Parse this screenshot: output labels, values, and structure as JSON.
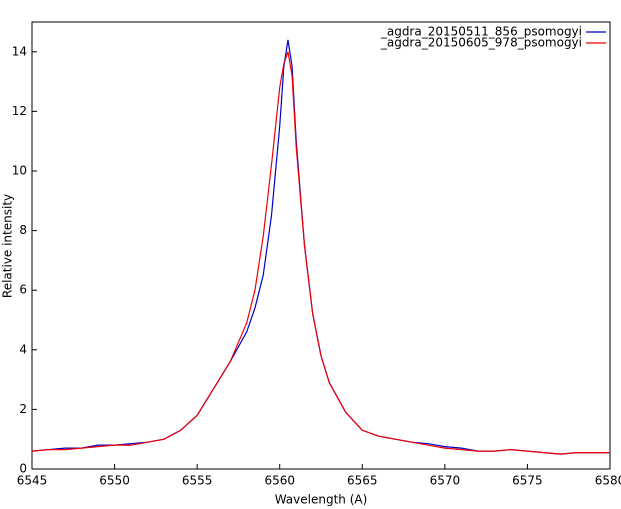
{
  "chart_data": {
    "type": "line",
    "x_label": "Wavelength (A)",
    "y_label": "Relative intensity",
    "x": [
      6545,
      6546,
      6547,
      6548,
      6549,
      6550,
      6551,
      6552,
      6553,
      6554,
      6555,
      6556,
      6557,
      6558,
      6558.5,
      6559,
      6559.5,
      6560,
      6560.25,
      6560.5,
      6560.75,
      6561,
      6561.5,
      6562,
      6562.5,
      6563,
      6564,
      6565,
      6566,
      6567,
      6568,
      6569,
      6570,
      6571,
      6572,
      6573,
      6574,
      6575,
      6576,
      6577,
      6578,
      6579,
      6580
    ],
    "series": [
      {
        "name": "_agdra_20150511_856_psomogyi",
        "color": "#0000cc",
        "values": [
          0.6,
          0.65,
          0.7,
          0.7,
          0.8,
          0.8,
          0.85,
          0.9,
          1.0,
          1.3,
          1.8,
          2.7,
          3.6,
          4.6,
          5.4,
          6.5,
          8.5,
          11.5,
          13.5,
          14.4,
          13.5,
          11.0,
          7.5,
          5.2,
          3.8,
          2.9,
          1.9,
          1.3,
          1.1,
          1.0,
          0.9,
          0.85,
          0.75,
          0.7,
          0.6,
          0.6,
          0.65,
          0.6,
          0.55,
          0.5,
          0.55,
          0.55,
          0.55
        ]
      },
      {
        "name": "_agdra_20150605_978_psomogyi",
        "color": "#ee0000",
        "values": [
          0.6,
          0.65,
          0.65,
          0.7,
          0.75,
          0.8,
          0.8,
          0.9,
          1.0,
          1.3,
          1.8,
          2.7,
          3.6,
          4.9,
          6.0,
          7.8,
          10.2,
          12.8,
          13.6,
          14.0,
          13.2,
          10.8,
          7.5,
          5.2,
          3.8,
          2.9,
          1.9,
          1.3,
          1.1,
          1.0,
          0.9,
          0.8,
          0.7,
          0.65,
          0.6,
          0.6,
          0.65,
          0.6,
          0.55,
          0.5,
          0.55,
          0.55,
          0.55
        ]
      }
    ],
    "xlim": [
      6545,
      6580
    ],
    "xticks": [
      6545,
      6550,
      6555,
      6560,
      6565,
      6570,
      6575,
      6580
    ],
    "ylim": [
      0,
      15
    ],
    "yticks": [
      0,
      2,
      4,
      6,
      8,
      10,
      12,
      14
    ],
    "legend": "top-right",
    "grid": false
  }
}
